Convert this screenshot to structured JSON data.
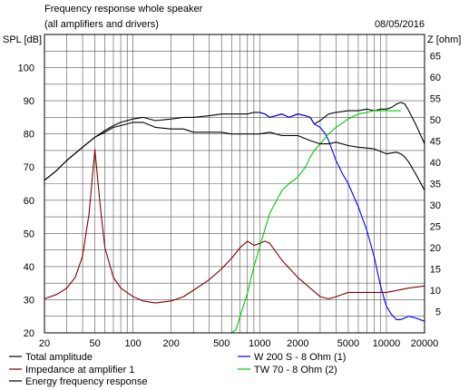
{
  "chart_data": {
    "type": "line",
    "title": "Frequency response whole speaker",
    "subtitle": "(all amplifiers and drivers)",
    "date": "08/05/2016",
    "ylabel": "SPL [dB]",
    "y2label": "Z [ohm]",
    "xscale": "log",
    "xlim": [
      20,
      20000
    ],
    "ylim": [
      20,
      110
    ],
    "y2lim": [
      0,
      70
    ],
    "grid": true,
    "legend_position": "bottom",
    "x_ticks": [
      20,
      50,
      100,
      200,
      500,
      1000,
      2000,
      5000,
      10000,
      20000
    ],
    "x_tick_labels": [
      "20",
      "50",
      "100",
      "200",
      "500",
      "1000",
      "2000",
      "5000",
      "10000",
      "20000"
    ],
    "y_ticks": [
      20,
      30,
      40,
      50,
      60,
      70,
      80,
      90,
      100
    ],
    "y2_ticks": [
      5,
      10,
      15,
      20,
      25,
      30,
      35,
      40,
      45,
      50,
      55,
      60,
      65
    ],
    "series": [
      {
        "name": "Total amplitude",
        "axis": "left",
        "color": "#000000",
        "x": [
          20,
          25,
          30,
          40,
          50,
          60,
          70,
          80,
          100,
          120,
          150,
          200,
          250,
          300,
          400,
          500,
          600,
          700,
          800,
          900,
          1000,
          1100,
          1200,
          1500,
          1700,
          2000,
          2300,
          2500,
          2700,
          3000,
          3500,
          4000,
          5000,
          6000,
          7000,
          8000,
          9000,
          10000,
          11000,
          12000,
          13000,
          14000,
          15000,
          17000,
          20000
        ],
        "y": [
          66,
          69,
          72,
          76,
          79,
          81,
          82.5,
          83.5,
          84.5,
          85,
          84,
          84.5,
          85,
          85,
          85.5,
          86,
          86,
          86,
          86,
          86.5,
          86.5,
          86,
          85,
          86,
          85,
          86,
          85.5,
          85,
          83,
          84,
          86,
          86.5,
          87,
          87,
          87.5,
          87,
          87.5,
          87.5,
          88,
          89,
          89.5,
          89,
          87,
          83,
          77
        ]
      },
      {
        "name": "W 200 S - 8 Ohm (1)",
        "axis": "left",
        "color": "#0000ff",
        "x": [
          1000,
          1100,
          1200,
          1500,
          1700,
          2000,
          2300,
          2500,
          2700,
          3000,
          3300,
          3500,
          3700,
          4000,
          4500,
          5000,
          6000,
          7000,
          8000,
          9000,
          10000,
          11000,
          12000,
          13000,
          15000,
          17000,
          20000
        ],
        "y": [
          86.5,
          86,
          85,
          86,
          85,
          86,
          85.5,
          85,
          83,
          82,
          80,
          78,
          75.5,
          72,
          68,
          65,
          58,
          51,
          43,
          34,
          28,
          25.5,
          24,
          24,
          25,
          24.5,
          23.5
        ]
      },
      {
        "name": "Impedance at amplifier 1",
        "axis": "right",
        "color": "#800000",
        "x": [
          20,
          25,
          30,
          35,
          40,
          45,
          50,
          55,
          60,
          70,
          80,
          100,
          120,
          150,
          200,
          250,
          300,
          400,
          500,
          600,
          700,
          800,
          900,
          1000,
          1100,
          1200,
          1500,
          2000,
          2500,
          3000,
          3500,
          4000,
          5000,
          6000,
          8000,
          10000,
          15000,
          20000
        ],
        "y": [
          8,
          9,
          10.5,
          13,
          18,
          28,
          43,
          30,
          20,
          13,
          10.5,
          8.5,
          7.5,
          7,
          7.5,
          8.5,
          10,
          12.5,
          15,
          17.5,
          20,
          21.5,
          20.5,
          21,
          21.5,
          21,
          17,
          13,
          10.5,
          8.5,
          8,
          8.5,
          9.5,
          9.5,
          9.5,
          9.5,
          10.5,
          11
        ]
      },
      {
        "name": "TW 70 - 8 Ohm (2)",
        "axis": "left",
        "color": "#00cc00",
        "x": [
          20,
          100,
          300,
          500,
          600,
          650,
          700,
          800,
          900,
          1000,
          1200,
          1500,
          1700,
          2000,
          2300,
          2500,
          2700,
          3000,
          3500,
          4000,
          5000,
          6000,
          7000,
          8000,
          10000,
          12000,
          13000
        ],
        "y": [
          20,
          20,
          20,
          20,
          20,
          21,
          25,
          32,
          40,
          46,
          56,
          63,
          65,
          67,
          70,
          73,
          75,
          77,
          80,
          82,
          84.5,
          86,
          86.5,
          87,
          87,
          87,
          87
        ]
      },
      {
        "name": "Energy frequency response",
        "axis": "left",
        "color": "#000000",
        "x": [
          20,
          25,
          30,
          40,
          50,
          60,
          70,
          80,
          100,
          120,
          150,
          200,
          250,
          300,
          400,
          500,
          600,
          700,
          800,
          1000,
          1200,
          1500,
          2000,
          2500,
          3000,
          3500,
          4000,
          5000,
          6000,
          8000,
          10000,
          12000,
          13000,
          14000,
          15000,
          17000,
          20000
        ],
        "y": [
          66,
          69,
          72,
          76,
          79,
          80.5,
          82,
          82.5,
          83.5,
          83.5,
          82,
          81.5,
          81.5,
          80.5,
          80.5,
          80.5,
          80,
          80,
          80,
          80,
          80.5,
          79.5,
          79.5,
          78,
          77,
          77,
          77.5,
          76.5,
          76,
          75.5,
          74,
          74.5,
          74,
          73,
          71.5,
          68,
          63
        ]
      }
    ]
  }
}
